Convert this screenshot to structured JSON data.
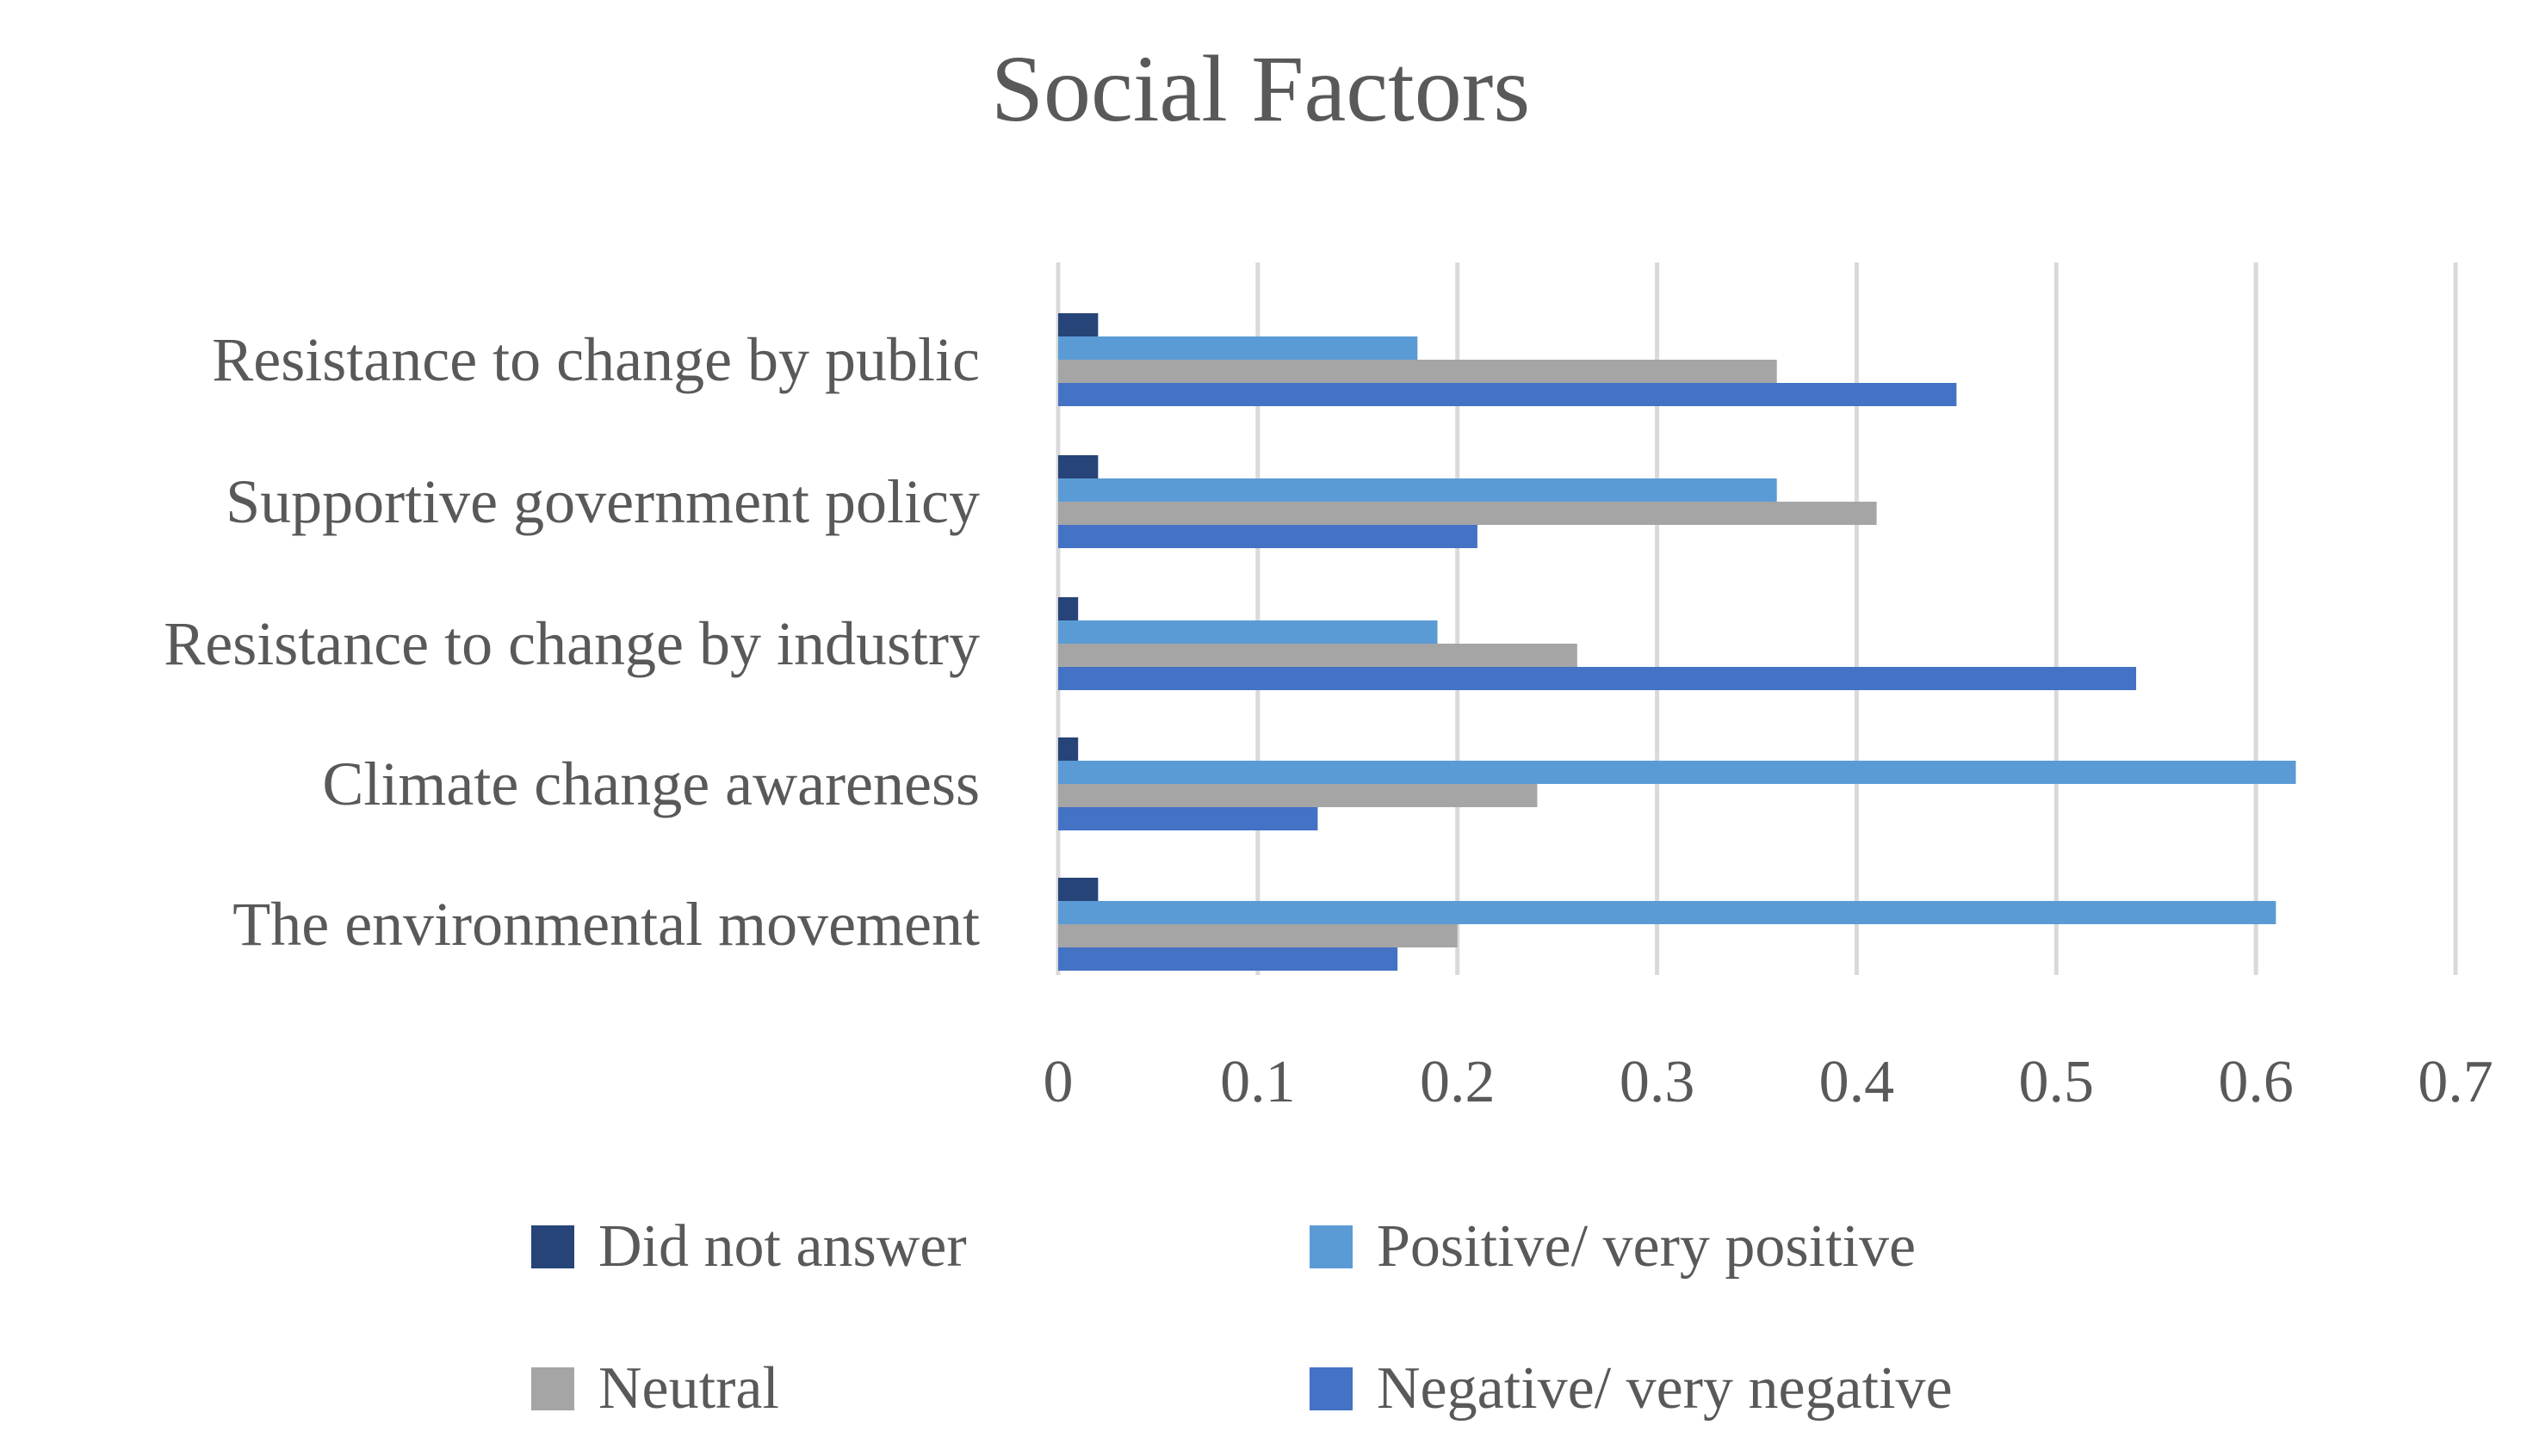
{
  "chart_data": {
    "type": "bar",
    "orientation": "horizontal",
    "title": "Social Factors",
    "xlabel": "",
    "ylabel": "",
    "xlim": [
      0,
      0.7
    ],
    "x_ticks": [
      "0",
      "0.1",
      "0.2",
      "0.3",
      "0.4",
      "0.5",
      "0.6",
      "0.7"
    ],
    "x_tick_values": [
      0,
      0.1,
      0.2,
      0.3,
      0.4,
      0.5,
      0.6,
      0.7
    ],
    "grid": true,
    "legend_position": "bottom",
    "categories": [
      "Resistance to change by public",
      "Supportive government policy",
      "Resistance to change by industry",
      "Climate change awareness",
      "The environmental movement"
    ],
    "series": [
      {
        "name": "Did not answer",
        "color": "#264478",
        "values": [
          0.02,
          0.02,
          0.01,
          0.01,
          0.02
        ]
      },
      {
        "name": "Positive/ very positive",
        "color": "#5B9BD5",
        "values": [
          0.18,
          0.36,
          0.19,
          0.62,
          0.61
        ]
      },
      {
        "name": "Neutral",
        "color": "#A5A5A5",
        "values": [
          0.36,
          0.41,
          0.26,
          0.24,
          0.2
        ]
      },
      {
        "name": "Negative/ very negative",
        "color": "#4472C4",
        "values": [
          0.45,
          0.21,
          0.54,
          0.13,
          0.17
        ]
      }
    ],
    "legend_order": [
      "Did not answer",
      "Positive/ very positive",
      "Neutral",
      "Negative/ very negative"
    ]
  }
}
